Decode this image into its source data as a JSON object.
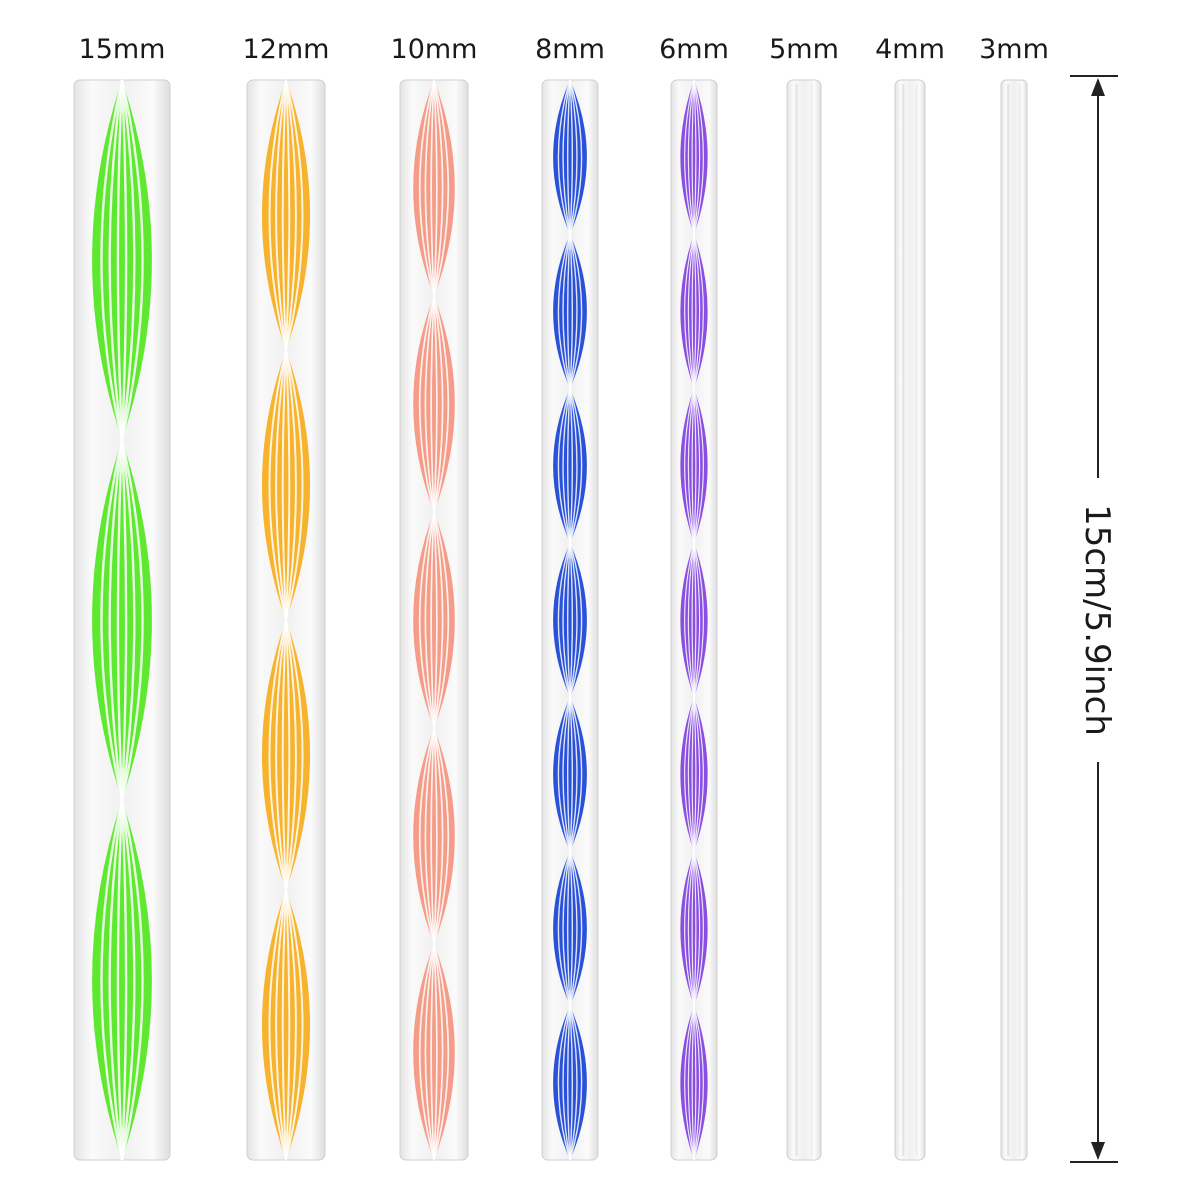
{
  "rods": [
    {
      "label": "15mm",
      "color": "#5fe830",
      "pattern": "twisted-stripes",
      "twists": 3
    },
    {
      "label": "12mm",
      "color": "#f7b32e",
      "pattern": "twisted-stripes",
      "twists": 4
    },
    {
      "label": "10mm",
      "color": "#f49c88",
      "pattern": "twisted-stripes",
      "twists": 5
    },
    {
      "label": "8mm",
      "color": "#2a52d8",
      "pattern": "twisted-stripes",
      "twists": 7
    },
    {
      "label": "6mm",
      "color": "#8a4fe0",
      "pattern": "twisted-stripes",
      "twists": 7
    },
    {
      "label": "5mm",
      "color": "#d8d8d8",
      "pattern": "clear"
    },
    {
      "label": "4mm",
      "color": "#d8d8d8",
      "pattern": "clear"
    },
    {
      "label": "3mm",
      "color": "#d8d8d8",
      "pattern": "clear"
    }
  ],
  "length_label": "15cm/5.9inch"
}
